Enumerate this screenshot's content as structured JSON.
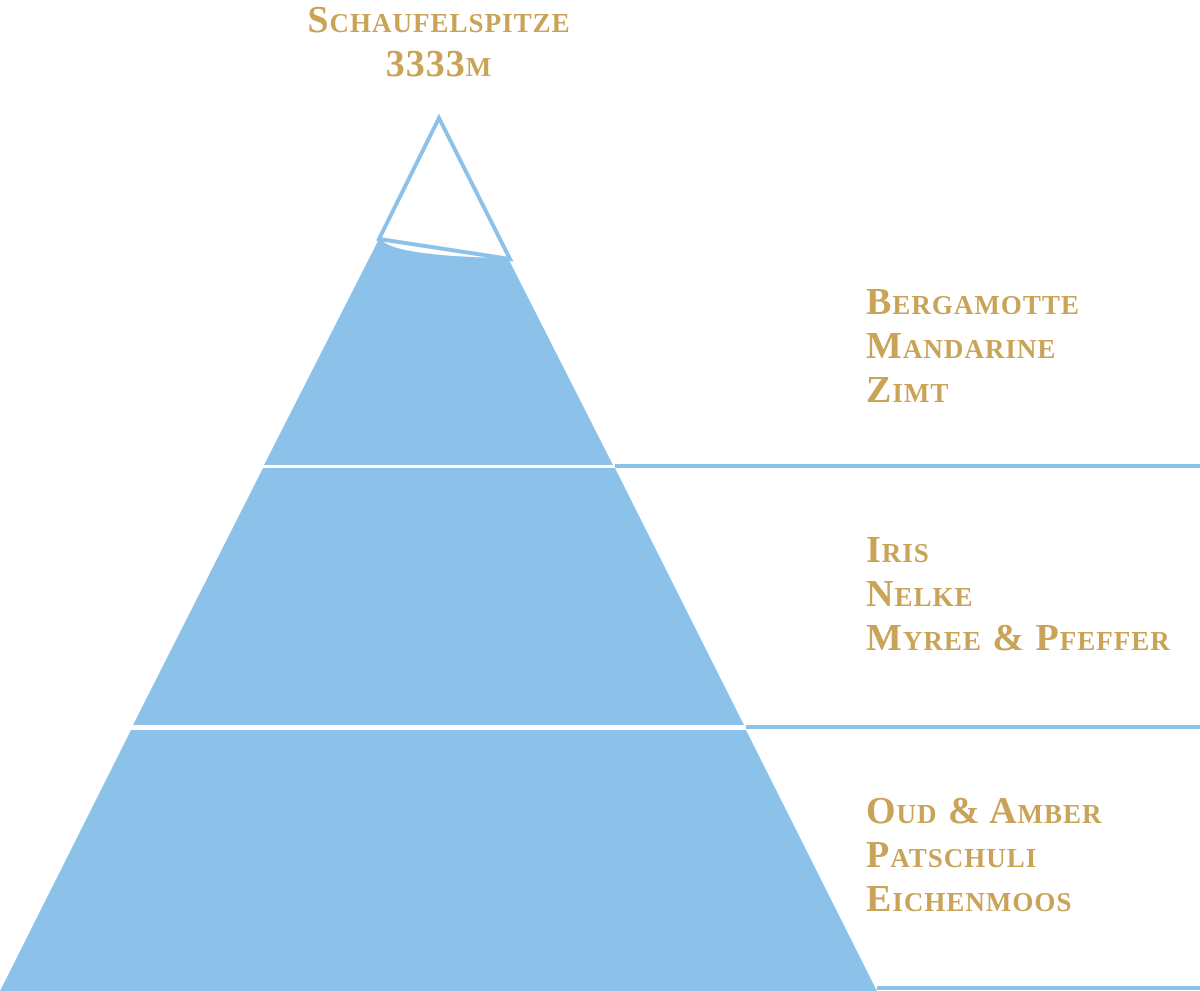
{
  "title": {
    "name": "Schaufelspitze",
    "elevation": "3333m"
  },
  "colors": {
    "pyramid": "#8CC1EA",
    "text": "#C9A458",
    "background": "#FFFFFF"
  },
  "tiers": [
    {
      "level": "top",
      "notes": [
        "Bergamotte",
        "Mandarine",
        "Zimt"
      ]
    },
    {
      "level": "middle",
      "notes": [
        "Iris",
        "Nelke",
        "Myree & Pfeffer"
      ]
    },
    {
      "level": "base",
      "notes": [
        "Oud & Amber",
        "Patschuli",
        "Eichenmoos"
      ]
    }
  ]
}
